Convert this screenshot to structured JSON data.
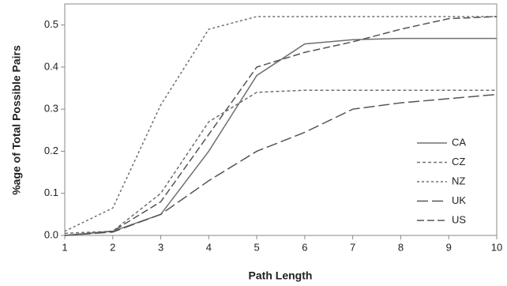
{
  "chart_data": {
    "type": "line",
    "x_label": "Path Length",
    "y_label": "%age of Total Possible Pairs",
    "x": [
      1,
      2,
      3,
      4,
      5,
      6,
      7,
      8,
      9,
      10
    ],
    "xlim": [
      1,
      10
    ],
    "xticks": [
      1,
      2,
      3,
      4,
      5,
      6,
      7,
      8,
      9,
      10
    ],
    "ylim": [
      0,
      0.55
    ],
    "yticks": [
      {
        "value": 0,
        "label": "0.0"
      },
      0.1,
      0.2,
      0.3,
      0.4,
      0.5
    ],
    "grid": false,
    "legend": "lower right",
    "series": [
      {
        "name": "CA",
        "color": "#707070",
        "dash": "none",
        "values": [
          0,
          0.01,
          0.05,
          0.2,
          0.38,
          0.455,
          0.465,
          0.468,
          0.468,
          0.468
        ]
      },
      {
        "name": "CZ",
        "color": "#707070",
        "dash": "4,3",
        "values": [
          0.005,
          0.01,
          0.1,
          0.27,
          0.34,
          0.345,
          0.345,
          0.345,
          0.345,
          0.345
        ]
      },
      {
        "name": "NZ",
        "color": "#707070",
        "dash": "3,3",
        "values": [
          0.01,
          0.065,
          0.31,
          0.49,
          0.52,
          0.52,
          0.52,
          0.52,
          0.52,
          0.52
        ]
      },
      {
        "name": "UK",
        "color": "#555555",
        "dash": "14,5",
        "values": [
          0,
          0.008,
          0.05,
          0.13,
          0.2,
          0.245,
          0.3,
          0.315,
          0.325,
          0.335
        ]
      },
      {
        "name": "US",
        "color": "#555555",
        "dash": "9,4",
        "values": [
          0,
          0.01,
          0.08,
          0.24,
          0.4,
          0.435,
          0.46,
          0.49,
          0.515,
          0.52
        ]
      }
    ]
  }
}
